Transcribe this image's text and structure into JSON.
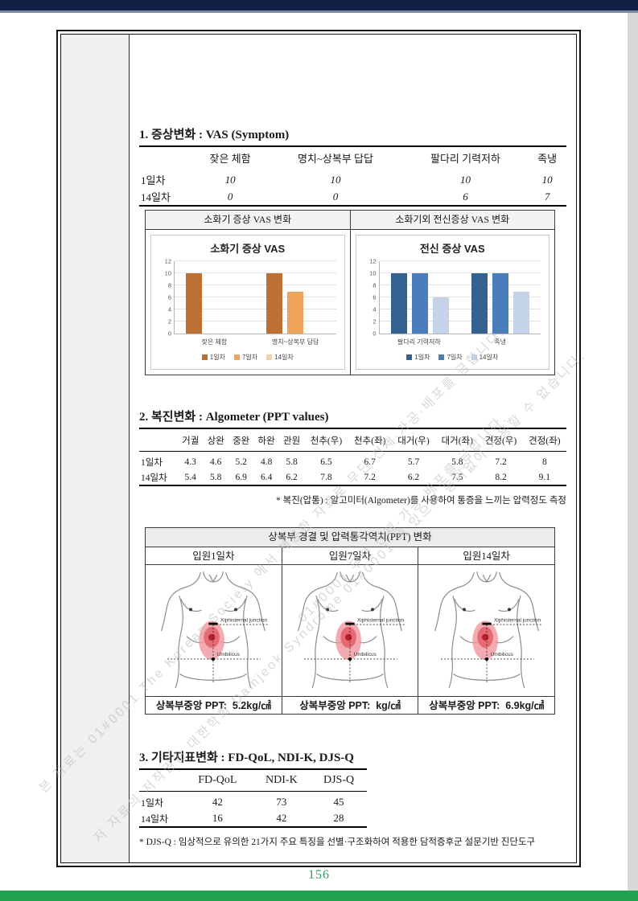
{
  "page": {
    "number": "156"
  },
  "watermark": {
    "lines": [
      "본 자료는 01#0001 The Korean Society 에서 제공한 자료로 무단 전제·가공·배포를 금합니다.",
      "저 자료의 저작권은 대한학회 Damjeok Syndrome 01#0001 에 있으며 동의없이 사용할 수 없습니다.",
      "01#0001 무단 전제·가공·배포를 금합니다."
    ]
  },
  "section1": {
    "title": "1. 증상변화 : VAS (Symptom)",
    "table": {
      "columns": [
        "잦은 체함",
        "명치~상복부 답답",
        "팔다리 기력저하",
        "족냉"
      ],
      "rows": [
        {
          "label": "1일차",
          "values": [
            "10",
            "10",
            "10",
            "10"
          ]
        },
        {
          "label": "14일차",
          "values": [
            "0",
            "0",
            "6",
            "7"
          ]
        }
      ]
    },
    "panel_headers": [
      "소화기 증상 VAS 변화",
      "소화기외 전신증상 VAS 변화"
    ]
  },
  "chart_data": [
    {
      "type": "bar",
      "title": "소화기 증상 VAS",
      "categories": [
        "잦은 체함",
        "명치~상복부 답답"
      ],
      "series": [
        {
          "name": "1일차",
          "color": "#bd7034",
          "values": [
            10,
            10
          ]
        },
        {
          "name": "7일차",
          "color": "#eda55e",
          "values": [
            0,
            7
          ]
        },
        {
          "name": "14일차",
          "color": "#f4d0a6",
          "values": [
            0,
            0
          ]
        }
      ],
      "ylim": [
        0,
        12
      ],
      "ytick": 2,
      "grid": true,
      "legend_position": "bottom"
    },
    {
      "type": "bar",
      "title": "전신 증상 VAS",
      "categories": [
        "팔다리 기력저하",
        "족냉"
      ],
      "series": [
        {
          "name": "1일차",
          "color": "#35618e",
          "values": [
            10,
            10
          ]
        },
        {
          "name": "7일차",
          "color": "#4a7ebb",
          "values": [
            10,
            10
          ]
        },
        {
          "name": "14일차",
          "color": "#c5d3e8",
          "values": [
            6,
            7
          ]
        }
      ],
      "ylim": [
        0,
        12
      ],
      "ytick": 2,
      "grid": true,
      "legend_position": "bottom"
    }
  ],
  "section2": {
    "title": "2. 복진변화 : Algometer (PPT values)",
    "table": {
      "columns": [
        "거궐",
        "상완",
        "중완",
        "하완",
        "관원",
        "천추(우)",
        "천추(좌)",
        "대거(우)",
        "대거(좌)",
        "견정(우)",
        "견정(좌)"
      ],
      "rows": [
        {
          "label": "1일차",
          "values": [
            "4.3",
            "4.6",
            "5.2",
            "4.8",
            "5.8",
            "6.5",
            "6.7",
            "5.7",
            "5.8",
            "7.2",
            "8"
          ]
        },
        {
          "label": "14일차",
          "values": [
            "5.4",
            "5.8",
            "6.9",
            "6.4",
            "6.2",
            "7.8",
            "7.2",
            "6.2",
            "7.5",
            "8.2",
            "9.1"
          ]
        }
      ]
    },
    "note": "* 복진(압통) : 알고미터(Algometer)를 사용하여 통증을 느끼는 압력정도 측정"
  },
  "ppt_panel": {
    "header": "상복부 경결 및 압력통각역치(PPT) 변화",
    "columns": [
      {
        "title": "입원1일차",
        "footer_label": "상복부중앙 PPT:",
        "footer_value": "5.2kg/㎠"
      },
      {
        "title": "입원7일차",
        "footer_label": "상복부중앙 PPT:",
        "footer_value": "kg/㎠"
      },
      {
        "title": "입원14일차",
        "footer_label": "상복부중앙 PPT:",
        "footer_value": "6.9kg/㎠"
      }
    ],
    "diagram_labels": {
      "top": "Xiphisternal junction",
      "bottom": "Umbilicus"
    }
  },
  "section3": {
    "title": "3. 기타지표변화 :  FD-QoL, NDI-K, DJS-Q",
    "table": {
      "columns": [
        "FD-QoL",
        "NDI-K",
        "DJS-Q"
      ],
      "rows": [
        {
          "label": "1일차",
          "values": [
            "42",
            "73",
            "45"
          ]
        },
        {
          "label": "14일차",
          "values": [
            "16",
            "42",
            "28"
          ]
        }
      ]
    },
    "note": "* DJS-Q : 임상적으로 유의한 21가지 주요 특징을 선별·구조화하여 적용한 담적증후군 설문기반 진단도구"
  }
}
